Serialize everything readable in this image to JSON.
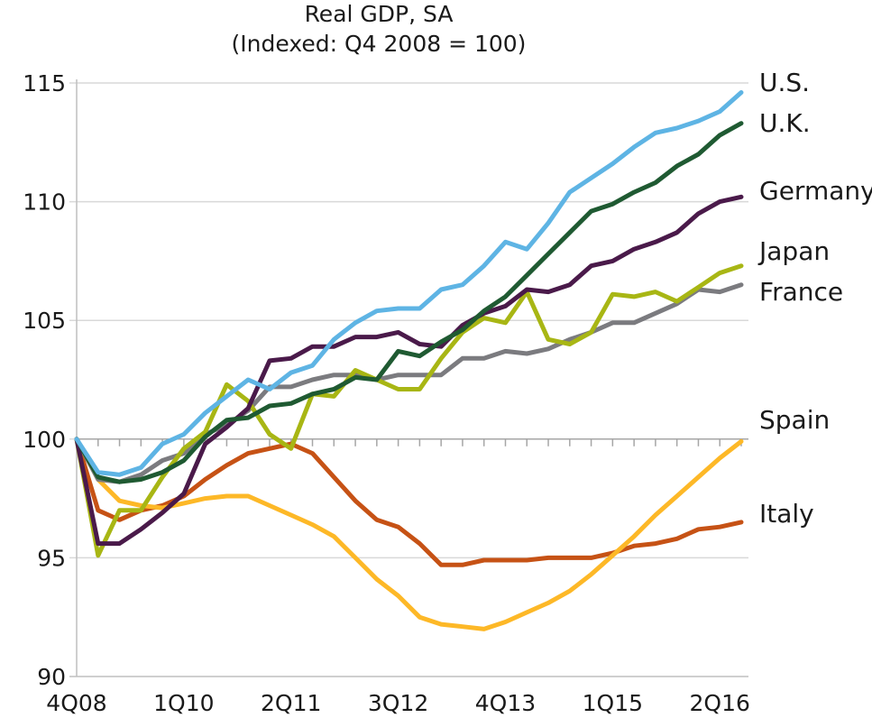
{
  "chart_data": {
    "type": "line",
    "title": "Real GDP, SA",
    "subtitle": "(Indexed: Q4 2008 = 100)",
    "xlabel": "",
    "ylabel": "",
    "ylim": [
      90,
      115
    ],
    "yticks": [
      90,
      95,
      100,
      105,
      110,
      115
    ],
    "x": [
      "4Q08",
      "1Q09",
      "2Q09",
      "3Q09",
      "4Q09",
      "1Q10",
      "2Q10",
      "3Q10",
      "4Q10",
      "1Q11",
      "2Q11",
      "3Q11",
      "4Q11",
      "1Q12",
      "2Q12",
      "3Q12",
      "4Q12",
      "1Q13",
      "2Q13",
      "3Q13",
      "4Q13",
      "1Q14",
      "2Q14",
      "3Q14",
      "4Q14",
      "1Q15",
      "2Q15",
      "3Q15",
      "4Q15",
      "1Q16",
      "2Q16",
      "3Q16"
    ],
    "xtick_labels": [
      "4Q08",
      "1Q10",
      "2Q11",
      "3Q12",
      "4Q13",
      "1Q15",
      "2Q16"
    ],
    "baseline": 100,
    "grid": true,
    "series": [
      {
        "name": "U.S.",
        "color": "#5eb4e4",
        "values": [
          100,
          98.6,
          98.5,
          98.8,
          99.8,
          100.2,
          101.1,
          101.8,
          102.5,
          102.1,
          102.8,
          103.1,
          104.2,
          104.9,
          105.4,
          105.5,
          105.5,
          106.3,
          106.5,
          107.3,
          108.3,
          108.0,
          109.1,
          110.4,
          111.0,
          111.6,
          112.3,
          112.9,
          113.1,
          113.4,
          113.8,
          114.6
        ]
      },
      {
        "name": "U.K.",
        "color": "#1f5a32",
        "values": [
          100,
          98.4,
          98.2,
          98.3,
          98.6,
          99.1,
          100.1,
          100.8,
          100.9,
          101.4,
          101.5,
          101.9,
          102.1,
          102.6,
          102.5,
          103.7,
          103.5,
          104.1,
          104.6,
          105.4,
          106.0,
          106.9,
          107.8,
          108.7,
          109.6,
          109.9,
          110.4,
          110.8,
          111.5,
          112.0,
          112.8,
          113.3
        ]
      },
      {
        "name": "Germany",
        "color": "#4a1a4a",
        "values": [
          100,
          95.6,
          95.6,
          96.2,
          96.9,
          97.7,
          99.8,
          100.5,
          101.3,
          103.3,
          103.4,
          103.9,
          103.9,
          104.3,
          104.3,
          104.5,
          104.0,
          103.9,
          104.8,
          105.3,
          105.6,
          106.3,
          106.2,
          106.5,
          107.3,
          107.5,
          108.0,
          108.3,
          108.7,
          109.5,
          110.0,
          110.2
        ]
      },
      {
        "name": "Japan",
        "color": "#a8b614",
        "values": [
          100,
          95.1,
          97.0,
          97.0,
          98.4,
          99.6,
          100.3,
          102.3,
          101.6,
          100.2,
          99.6,
          101.9,
          101.8,
          102.9,
          102.5,
          102.1,
          102.1,
          103.4,
          104.5,
          105.1,
          104.9,
          106.2,
          104.2,
          104.0,
          104.5,
          106.1,
          106.0,
          106.2,
          105.8,
          106.4,
          107.0,
          107.3
        ]
      },
      {
        "name": "France",
        "color": "#7b7b7f",
        "values": [
          100,
          98.3,
          98.2,
          98.5,
          99.1,
          99.4,
          100.2,
          100.6,
          101.2,
          102.2,
          102.2,
          102.5,
          102.7,
          102.7,
          102.5,
          102.7,
          102.7,
          102.7,
          103.4,
          103.4,
          103.7,
          103.6,
          103.8,
          104.2,
          104.5,
          104.9,
          104.9,
          105.3,
          105.7,
          106.3,
          106.2,
          106.5
        ]
      },
      {
        "name": "Spain",
        "color": "#fdb827",
        "values": [
          100,
          98.3,
          97.4,
          97.2,
          97.1,
          97.3,
          97.5,
          97.6,
          97.6,
          97.2,
          96.8,
          96.4,
          95.9,
          95.0,
          94.1,
          93.4,
          92.5,
          92.2,
          92.1,
          92.0,
          92.3,
          92.7,
          93.1,
          93.6,
          94.3,
          95.1,
          95.9,
          96.8,
          97.6,
          98.4,
          99.2,
          99.9
        ]
      },
      {
        "name": "Italy",
        "color": "#c65215",
        "values": [
          100,
          97.0,
          96.6,
          97.0,
          97.2,
          97.6,
          98.3,
          98.9,
          99.4,
          99.6,
          99.8,
          99.4,
          98.4,
          97.4,
          96.6,
          96.3,
          95.6,
          94.7,
          94.7,
          94.9,
          94.9,
          94.9,
          95.0,
          95.0,
          95.0,
          95.2,
          95.5,
          95.6,
          95.8,
          96.2,
          96.3,
          96.5
        ]
      }
    ],
    "legend": "inline-right"
  }
}
